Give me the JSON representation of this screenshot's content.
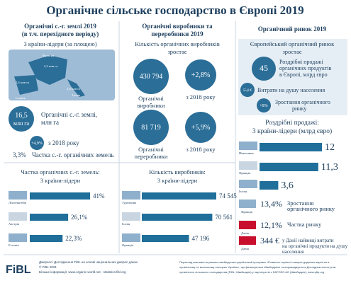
{
  "header": {
    "title": "Органічне сільське господарство в Європі 2019"
  },
  "land": {
    "title": [
      "Органічні с.-г. землі 2019",
      "(в т.ч. перехідного періоду)"
    ],
    "subtitle": "3 країни-лідери (за площею)",
    "map": [
      {
        "country": "Франція",
        "value": "2,2 млн га"
      },
      {
        "country": "Іспанія",
        "value": "2,4 млн га"
      },
      {
        "country": "Італія",
        "value": "2,0 млн га"
      }
    ],
    "area": {
      "value": "16,5",
      "unit": "млн га",
      "label": [
        "Органічні с.-г. землі,",
        "млн га"
      ]
    },
    "growth": {
      "value": "+4,9%",
      "label": "з 2018 року"
    },
    "share": {
      "value": "3,3%",
      "label": "Частка с.-г. органічних земель"
    }
  },
  "producers": {
    "title": [
      "Органічні виробники та",
      "переробники 2019"
    ],
    "subtitle": [
      "Кількість органічних виробників",
      "зростає"
    ],
    "items": [
      {
        "value": "430 794",
        "label": [
          "Органічні",
          "виробники"
        ],
        "growth": "+2,8%",
        "growth_label": "з 2018 року"
      },
      {
        "value": "81 719",
        "label": [
          "Органічні",
          "переробники"
        ],
        "growth": "+5,9%",
        "growth_label": "з 2018 року"
      }
    ]
  },
  "market": {
    "title": "Органічний ринок 2019",
    "subtitle": [
      "Європейський органічний ринок",
      "зростає"
    ],
    "sales": {
      "value": "45",
      "label": [
        "Роздрібні продажі",
        "органічних продуктів",
        "в Європі, млрд євро"
      ]
    },
    "per_capita": {
      "value": "55,8 €",
      "label": "Витрати на душу населення"
    },
    "growth": {
      "value": "+8%",
      "label": [
        "Зростання органічного",
        "ринку"
      ]
    },
    "facts": [
      {
        "country": "Франція",
        "value": "13,4%",
        "label": [
          "Зростання",
          "органічного ринку"
        ]
      },
      {
        "country": "Данія",
        "value": "12,1%",
        "label": [
          "Частка ринку"
        ]
      },
      {
        "country": "Данія",
        "value": "344 €",
        "label": [
          "у Данії найвищі витрати",
          "на органічні продукти на душу",
          "населення"
        ]
      }
    ]
  },
  "retail_leaders": {
    "title": [
      "Роздрібні продажі:",
      "3 країни-лідери (млрд євро)"
    ],
    "items": [
      {
        "country": "Німеччина",
        "value": 12
      },
      {
        "country": "Франція",
        "value": 11.3,
        "value_label": "11,3"
      },
      {
        "country": "Італія",
        "value": 3.6,
        "value_label": "3,6"
      }
    ]
  },
  "share_leaders": {
    "title": [
      "Частка органічних с.-г. земель:",
      "3 країни-лідери"
    ],
    "items": [
      {
        "country": "Ліхтенштейн",
        "value": 41,
        "value_label": "41%"
      },
      {
        "country": "Австрія",
        "value": 26.1,
        "value_label": "26,1%"
      },
      {
        "country": "Естонія",
        "value": 22.3,
        "value_label": "22,3%"
      }
    ]
  },
  "producer_leaders": {
    "title": [
      "Кількість виробників:",
      "3 країни-лідери"
    ],
    "items": [
      {
        "country": "Туреччина",
        "value": 74545,
        "value_label": "74 545"
      },
      {
        "country": "Італія",
        "value": 70561,
        "value_label": "70 561"
      },
      {
        "country": "Франція",
        "value": 47196,
        "value_label": "47 196"
      }
    ]
  },
  "footer": {
    "logo": "FiBL",
    "source": [
      "Джерело: Дослідження FiBL на основі національних джерел даних",
      "© FiBL 2021",
      "Більше інформації: www.organic-world.net - statistics.fibl.org"
    ],
    "note": [
      "Переклад виконано в рамках швейцарсько-українськой програми «Розвиток торгівлі з вищою доданою вартістю в",
      "органічному та молочному секторах України», що фінансується Швейцарією та впроваджується Дослідним інститутом",
      "органічного сільського господарства (FiBL, Швейцарія) у партнерстві з SAFOSO AG (Швейцарія), www.qftp.org"
    ]
  }
}
